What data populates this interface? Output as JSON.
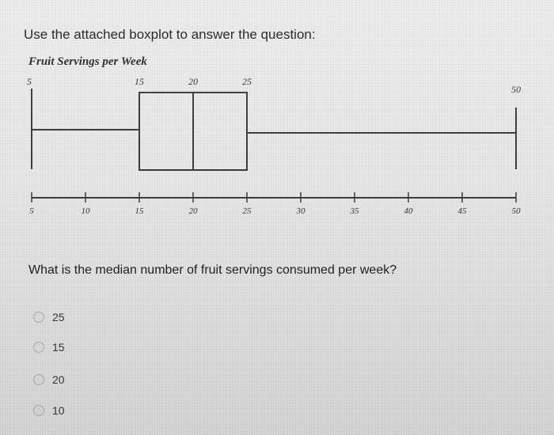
{
  "question_prompt": "Use the attached boxplot to answer the question:",
  "question_text": "What is the median number of fruit servings consumed per week?",
  "options": [
    {
      "label": "25"
    },
    {
      "label": "15"
    },
    {
      "label": "20"
    },
    {
      "label": "10"
    }
  ],
  "chart_data": {
    "type": "boxplot",
    "title": "Fruit Servings per Week",
    "min": 5,
    "q1": 15,
    "median": 20,
    "q3": 25,
    "max": 50,
    "axis_ticks": [
      5,
      10,
      15,
      20,
      25,
      30,
      35,
      40,
      45,
      50
    ],
    "xlim": [
      5,
      50
    ],
    "colors": {
      "line": "#3c3c3c",
      "text": "#333333"
    }
  }
}
